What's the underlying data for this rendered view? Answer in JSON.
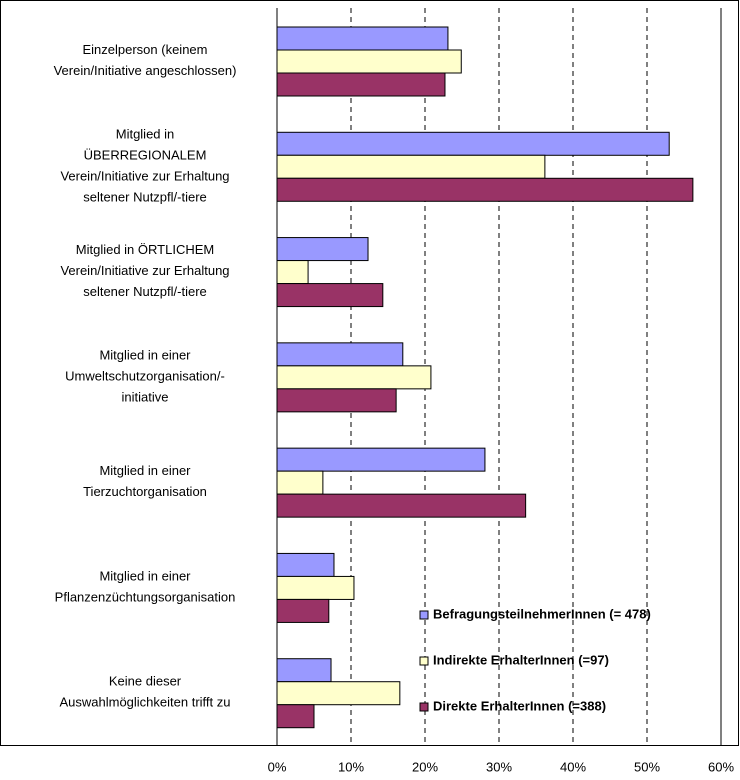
{
  "chart_data": {
    "type": "hbar",
    "categories": [
      "Einzelperson (keinem\nVerein/Initiative angeschlossen)",
      "Mitglied in\nÜBERREGIONALEM\nVerein/Initiative zur Erhaltung\nseltener Nutzpfl/-tiere",
      "Mitglied in ÖRTLICHEM\nVerein/Initiative zur Erhaltung\nseltener Nutzpfl/-tiere",
      "Mitglied in einer\nUmweltschutzorganisation/-\ninitiative",
      "Mitglied in einer\nTierzuchtorganisation",
      "Mitglied in einer\nPflanzenzüchtungsorganisation",
      "Keine dieser\nAuswahlmöglichkeiten trifft zu"
    ],
    "series": [
      {
        "name": "BefragungsteilnehmerInnen (= 478)",
        "color": "#9999ff",
        "values": [
          23.1,
          53.0,
          12.3,
          17.0,
          28.1,
          7.7,
          7.3
        ]
      },
      {
        "name": "Indirekte ErhalterInnen (=97)",
        "color": "#ffffcc",
        "values": [
          24.9,
          36.2,
          4.2,
          20.8,
          6.2,
          10.4,
          16.6
        ]
      },
      {
        "name": "Direkte ErhalterInnen (=388)",
        "color": "#993366",
        "values": [
          22.7,
          56.2,
          14.3,
          16.1,
          33.6,
          7.0,
          5.0
        ]
      }
    ],
    "xlim": [
      0,
      60
    ],
    "xticks": [
      {
        "value": 0,
        "label": "0%"
      },
      {
        "value": 10,
        "label": "10%"
      },
      {
        "value": 20,
        "label": "20%"
      },
      {
        "value": 30,
        "label": "30%"
      },
      {
        "value": 40,
        "label": "40%"
      },
      {
        "value": 50,
        "label": "50%"
      },
      {
        "value": 60,
        "label": "60%"
      }
    ],
    "grid": true,
    "legend": "lower right"
  }
}
